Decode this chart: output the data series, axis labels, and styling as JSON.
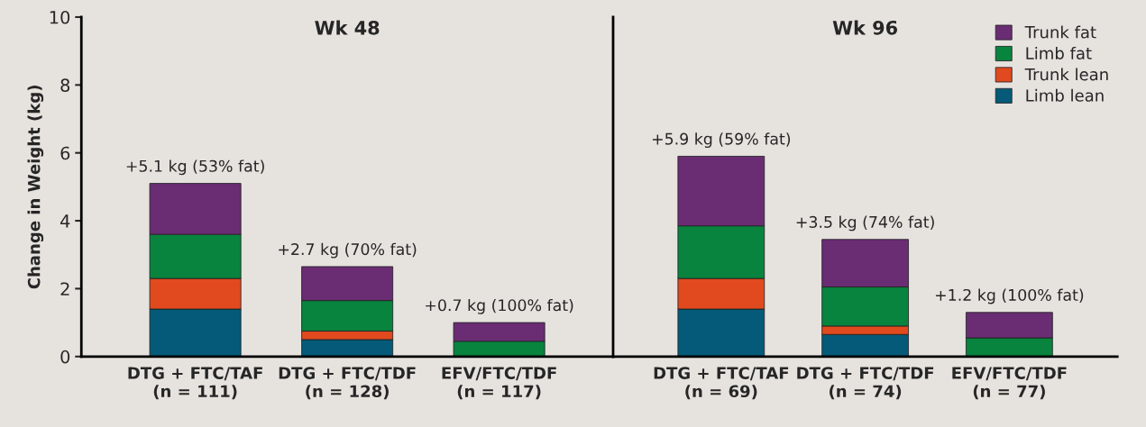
{
  "chart_data": [
    {
      "type": "bar",
      "stacked": true,
      "title": "Wk 48",
      "ylabel": "Change in Weight (kg)",
      "categories": [
        "DTG + FTC/TAF\n(n = 111)",
        "DTG + FTC/TDF\n(n = 128)",
        "EFV/FTC/TDF\n(n = 117)"
      ],
      "series": [
        {
          "color": "#045a78",
          "values": [
            1.4,
            0.5,
            0
          ]
        },
        {
          "color": "#e04a1e",
          "values": [
            0.9,
            0.25,
            0
          ]
        },
        {
          "color": "#08843e",
          "values": [
            1.3,
            0.9,
            0.45
          ]
        },
        {
          "color": "#6a2d73",
          "values": [
            1.5,
            1.0,
            0.55
          ]
        }
      ],
      "totals": [
        "+5.1 kg (53% fat)",
        "+2.7 kg (70% fat)",
        "+0.7 kg (100% fat)"
      ],
      "ylim": [
        0,
        10
      ],
      "yticks": [
        0,
        2,
        4,
        6,
        8,
        10
      ],
      "grid": false,
      "legend": false
    },
    {
      "type": "bar",
      "stacked": true,
      "title": "Wk 96",
      "categories": [
        "DTG + FTC/TAF\n(n = 69)",
        "DTG + FTC/TDF\n(n = 74)",
        "EFV/FTC/TDF\n(n = 77)"
      ],
      "series": [
        {
          "name": "Limb lean",
          "color": "#045a78",
          "values": [
            1.4,
            0.65,
            0
          ]
        },
        {
          "name": "Trunk lean",
          "color": "#e04a1e",
          "values": [
            0.9,
            0.25,
            0
          ]
        },
        {
          "name": "Limb fat",
          "color": "#08843e",
          "values": [
            1.55,
            1.15,
            0.55
          ]
        },
        {
          "name": "Trunk fat",
          "color": "#6a2d73",
          "values": [
            2.05,
            1.4,
            0.75
          ]
        }
      ],
      "totals": [
        "+5.9 kg (59% fat)",
        "+3.5 kg (74% fat)",
        "+1.2 kg (100% fat)"
      ],
      "ylim": [
        0,
        10
      ],
      "tick_labels": "x",
      "grid": false,
      "legend": "top right"
    }
  ]
}
